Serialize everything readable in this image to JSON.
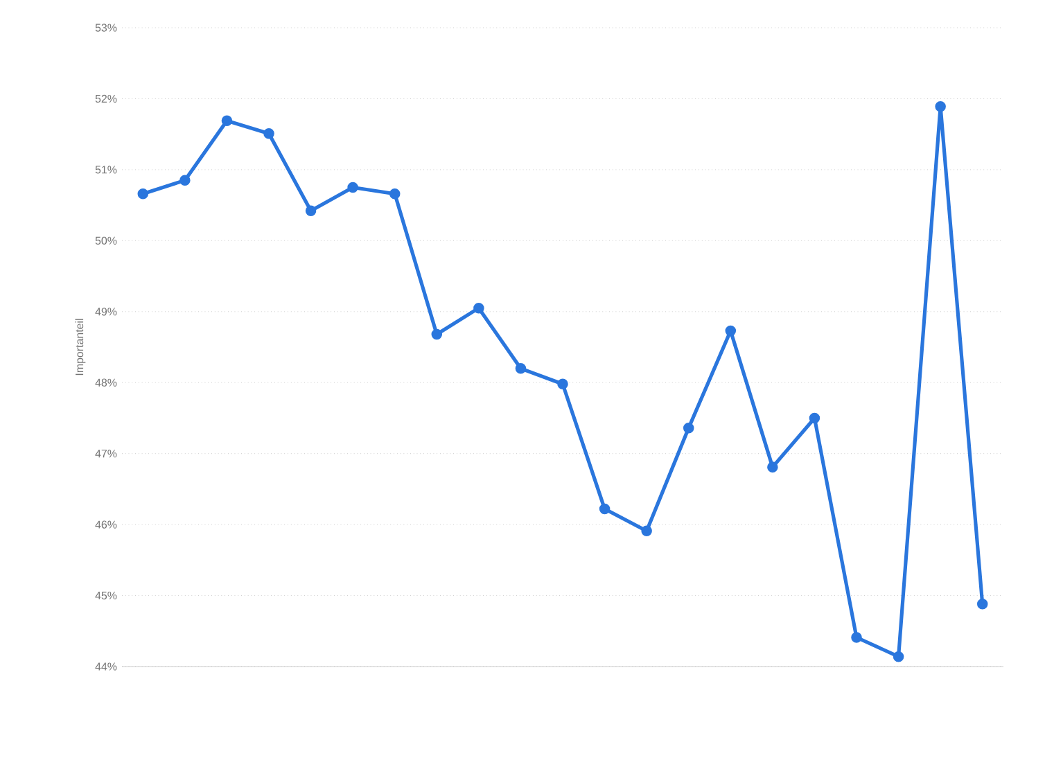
{
  "chart_data": {
    "type": "line",
    "ylabel": "Importanteil",
    "categories": [
      null,
      null,
      null,
      null,
      null,
      null,
      null,
      null,
      null,
      null,
      null,
      null,
      null,
      null,
      null,
      null,
      null,
      null,
      null,
      null,
      null
    ],
    "series": [
      {
        "color": "#2a76dd",
        "values": [
          50.66,
          50.85,
          51.69,
          51.51,
          50.42,
          50.75,
          50.66,
          48.68,
          49.05,
          48.2,
          47.98,
          46.22,
          45.91,
          47.36,
          48.73,
          46.81,
          47.5,
          44.41,
          44.14,
          51.89,
          44.88
        ]
      }
    ],
    "ylim": [
      44,
      53
    ],
    "yticks": [
      {
        "value": 44,
        "label": "44%"
      },
      {
        "value": 45,
        "label": "45%"
      },
      {
        "value": 46,
        "label": "46%"
      },
      {
        "value": 47,
        "label": "47%"
      },
      {
        "value": 48,
        "label": "48%"
      },
      {
        "value": 49,
        "label": "49%"
      },
      {
        "value": 50,
        "label": "50%"
      },
      {
        "value": 51,
        "label": "51%"
      },
      {
        "value": 52,
        "label": "52%"
      },
      {
        "value": 53,
        "label": "53%"
      }
    ],
    "grid": "y",
    "marker": "circle",
    "line_style": "solid",
    "tick_labels": "y"
  }
}
